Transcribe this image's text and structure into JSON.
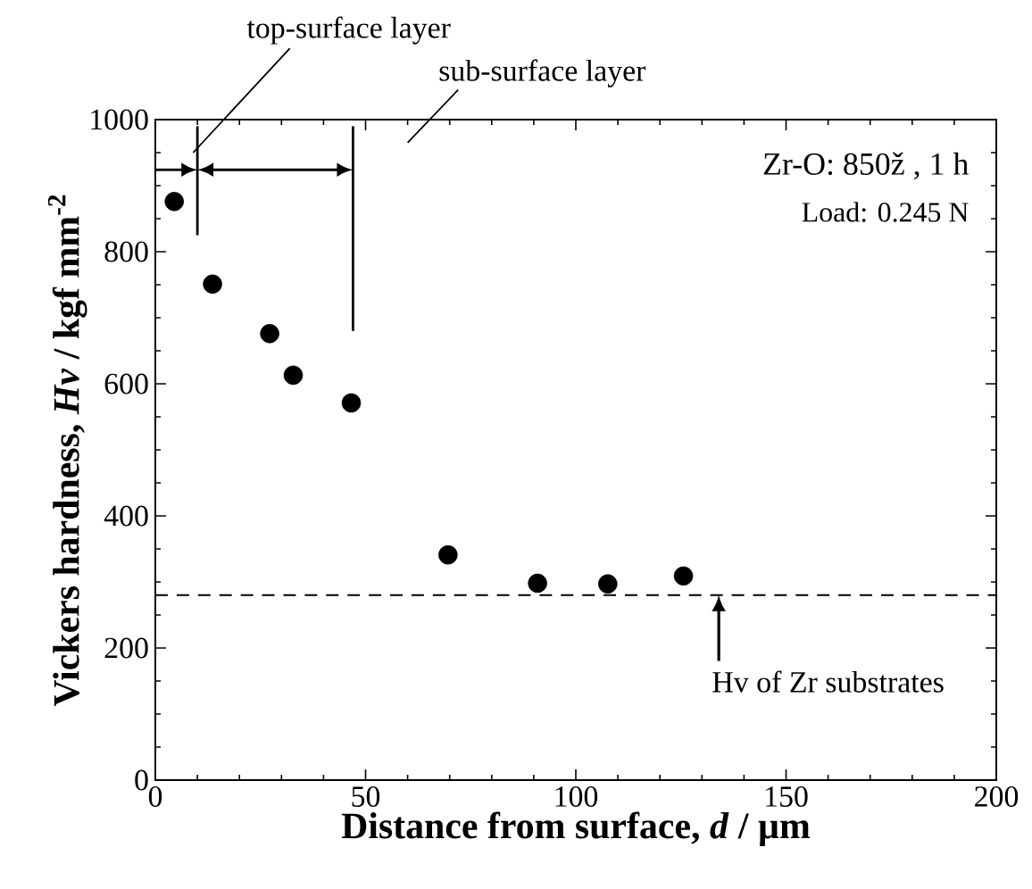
{
  "chart_data": {
    "type": "scatter",
    "xlabel": "Distance from surface, *d* / µm",
    "ylabel": "Vickers hardness, *Hv* / kgf mm$^{-2}$",
    "x": [
      4.5,
      13.6,
      27.2,
      32.8,
      46.6,
      69.6,
      90.9,
      107.6,
      125.6
    ],
    "values": [
      876,
      751,
      676,
      613,
      571,
      341,
      298,
      297,
      309
    ],
    "color": "#000000",
    "xlim": [
      0,
      200
    ],
    "ylim": [
      0,
      1000
    ],
    "xticks": [
      0,
      50,
      100,
      150,
      200
    ],
    "yticks": [
      0,
      200,
      400,
      600,
      800,
      1000
    ],
    "ref_lines": [
      {
        "axis": "y",
        "value": 280,
        "label": "Hv of Zr substrates",
        "line_style": "dashed"
      }
    ],
    "annotations": [
      "top-surface layer",
      "sub-surface layer",
      "Zr-O: 850ž , 1 h",
      "Load: 0.245 N"
    ]
  }
}
